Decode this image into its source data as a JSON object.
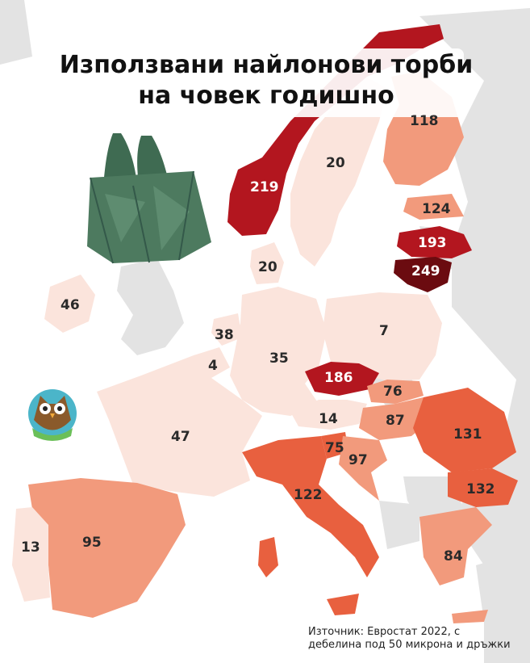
{
  "title": {
    "line1": "Използвани найлонови торби",
    "line2": "на човек годишно"
  },
  "source": {
    "line1": "Източник: Евростат 2022, с",
    "line2": "дебелина под 50 микрона и дръжки"
  },
  "colors": {
    "background_land": "#e3e3e3",
    "sea": "#ffffff",
    "scale_low": "#fbe4dc",
    "scale_mid": "#f29a7c",
    "scale_high": "#e8603f",
    "scale_very_high": "#b3161f",
    "scale_max": "#6b0b10"
  },
  "icons": [
    "plastic-bag-icon",
    "owl-logo-icon"
  ],
  "countries": [
    {
      "name": "norway",
      "value": "219"
    },
    {
      "name": "sweden",
      "value": "20"
    },
    {
      "name": "finland",
      "value": "118"
    },
    {
      "name": "estonia",
      "value": "124"
    },
    {
      "name": "latvia",
      "value": "193"
    },
    {
      "name": "lithuania",
      "value": "249"
    },
    {
      "name": "denmark",
      "value": "20"
    },
    {
      "name": "ireland",
      "value": "46"
    },
    {
      "name": "netherlands",
      "value": "38"
    },
    {
      "name": "belgium",
      "value": "4"
    },
    {
      "name": "germany",
      "value": "35"
    },
    {
      "name": "poland",
      "value": "7"
    },
    {
      "name": "czechia",
      "value": "186"
    },
    {
      "name": "slovakia",
      "value": "76"
    },
    {
      "name": "austria",
      "value": "14"
    },
    {
      "name": "hungary",
      "value": "87"
    },
    {
      "name": "romania",
      "value": "131"
    },
    {
      "name": "bulgaria",
      "value": "132"
    },
    {
      "name": "slovenia",
      "value": "75"
    },
    {
      "name": "croatia",
      "value": "97"
    },
    {
      "name": "france",
      "value": "47"
    },
    {
      "name": "italy",
      "value": "122"
    },
    {
      "name": "spain",
      "value": "95"
    },
    {
      "name": "portugal",
      "value": "13"
    },
    {
      "name": "greece",
      "value": "84"
    }
  ]
}
